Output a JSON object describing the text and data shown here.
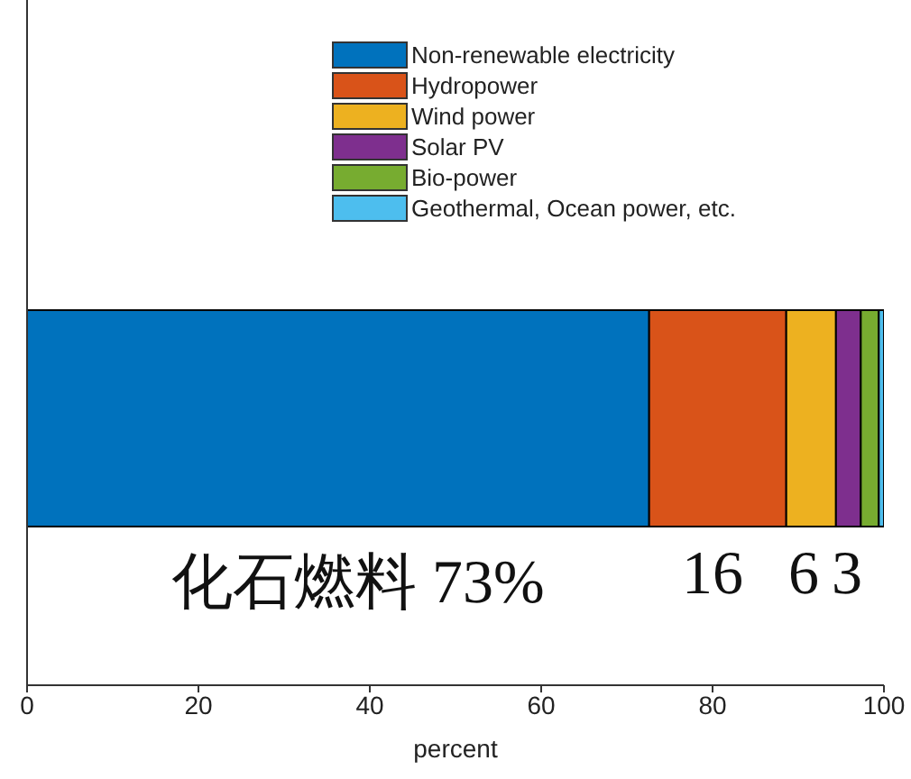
{
  "chart_data": {
    "type": "bar",
    "orientation": "horizontal",
    "stacked": true,
    "categories": [
      null
    ],
    "xlabel": "percent",
    "xlim": [
      0,
      100
    ],
    "xticks": [
      0,
      20,
      40,
      60,
      80,
      100
    ],
    "grid": false,
    "legend": "top right",
    "series": [
      {
        "name": "Non-renewable electricity",
        "color": "#0072bd",
        "values": [
          72.6
        ]
      },
      {
        "name": "Hydropower",
        "color": "#d95319",
        "values": [
          16.0
        ]
      },
      {
        "name": "Wind power",
        "color": "#edb120",
        "values": [
          5.8
        ]
      },
      {
        "name": "Solar PV",
        "color": "#7e2f8e",
        "values": [
          2.9
        ]
      },
      {
        "name": "Bio-power",
        "color": "#77ac30",
        "values": [
          2.1
        ]
      },
      {
        "name": "Geothermal, Ocean power, etc.",
        "color": "#4dbeee",
        "values": [
          0.6
        ]
      }
    ],
    "annotations": [
      "化石燃料 73%",
      "16",
      "6",
      "3"
    ]
  }
}
